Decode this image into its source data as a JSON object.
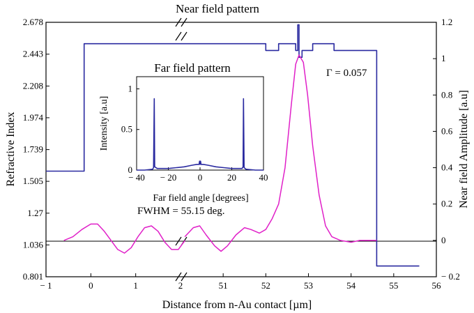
{
  "chart_data": [
    {
      "type": "line",
      "title": "Near field pattern",
      "xlabel": "Distance from n-Au contact [µm]",
      "ylabel": "Refractive Index",
      "y2label": "Near field Amplitude [a.u]",
      "x_broken_axis": true,
      "x_ticks_left": [
        "− 1",
        "0",
        "1",
        "2"
      ],
      "x_ticks_right": [
        "51",
        "52",
        "53",
        "54",
        "55",
        "56"
      ],
      "y_ticks": [
        "0.801",
        "1.036",
        "1.27",
        "1.505",
        "1.739",
        "1.974",
        "2.208",
        "2.443",
        "2.678"
      ],
      "y2_ticks": [
        "− 0.2",
        "0",
        "0.2",
        "0.4",
        "0.6",
        "0.8",
        "1",
        "1.2"
      ],
      "ylim": [
        0.801,
        2.678
      ],
      "y2lim": [
        -0.2,
        1.2
      ],
      "grid": false,
      "series": [
        {
          "color": "#2a2aa0",
          "axis": "left",
          "points_left_segment": [
            [
              -1,
              1.58
            ],
            [
              -0.15,
              1.58
            ],
            [
              -0.15,
              2.52
            ],
            [
              2,
              2.52
            ]
          ],
          "points_right_segment": [
            [
              50,
              2.52
            ],
            [
              52.0,
              2.52
            ],
            [
              52.0,
              2.47
            ],
            [
              52.3,
              2.47
            ],
            [
              52.3,
              2.52
            ],
            [
              52.7,
              2.52
            ],
            [
              52.7,
              2.47
            ],
            [
              52.75,
              2.47
            ],
            [
              52.75,
              2.66
            ],
            [
              52.78,
              2.66
            ],
            [
              52.78,
              2.42
            ],
            [
              52.85,
              2.42
            ],
            [
              52.85,
              2.47
            ],
            [
              53.1,
              2.47
            ],
            [
              53.1,
              2.52
            ],
            [
              53.6,
              2.52
            ],
            [
              53.6,
              2.47
            ],
            [
              54.6,
              2.47
            ],
            [
              54.6,
              0.88
            ],
            [
              55.6,
              0.88
            ]
          ]
        },
        {
          "color": "#e020c8",
          "axis": "right",
          "points_left_segment": [
            [
              -0.6,
              0.0
            ],
            [
              -0.4,
              0.02
            ],
            [
              -0.2,
              0.06
            ],
            [
              0.0,
              0.09
            ],
            [
              0.15,
              0.09
            ],
            [
              0.3,
              0.05
            ],
            [
              0.45,
              0.0
            ],
            [
              0.6,
              -0.05
            ],
            [
              0.75,
              -0.07
            ],
            [
              0.9,
              -0.04
            ],
            [
              1.05,
              0.02
            ],
            [
              1.2,
              0.07
            ],
            [
              1.35,
              0.08
            ],
            [
              1.5,
              0.05
            ],
            [
              1.65,
              -0.01
            ],
            [
              1.8,
              -0.05
            ],
            [
              1.95,
              -0.05
            ],
            [
              2.1,
              0.0
            ]
          ],
          "points_right_segment": [
            [
              50.1,
              0.02
            ],
            [
              50.3,
              0.07
            ],
            [
              50.45,
              0.08
            ],
            [
              50.6,
              0.03
            ],
            [
              50.8,
              -0.03
            ],
            [
              50.95,
              -0.06
            ],
            [
              51.1,
              -0.03
            ],
            [
              51.3,
              0.03
            ],
            [
              51.5,
              0.07
            ],
            [
              51.65,
              0.06
            ],
            [
              51.85,
              0.04
            ],
            [
              52.0,
              0.06
            ],
            [
              52.15,
              0.12
            ],
            [
              52.3,
              0.2
            ],
            [
              52.45,
              0.4
            ],
            [
              52.6,
              0.75
            ],
            [
              52.7,
              0.97
            ],
            [
              52.78,
              1.02
            ],
            [
              52.88,
              0.98
            ],
            [
              52.98,
              0.8
            ],
            [
              53.1,
              0.52
            ],
            [
              53.25,
              0.25
            ],
            [
              53.4,
              0.08
            ],
            [
              53.55,
              0.02
            ],
            [
              53.75,
              0.0
            ],
            [
              54.0,
              -0.01
            ],
            [
              54.2,
              0.0
            ],
            [
              54.4,
              0.0
            ],
            [
              54.6,
              0.0
            ]
          ]
        }
      ],
      "annotations": {
        "gamma": "Γ = 0.057",
        "fwhm": "FWHM = 55.15 deg."
      }
    },
    {
      "type": "line",
      "title": "Far field pattern",
      "xlabel": "Far field angle [degrees]",
      "ylabel": "Intensity [a.u]",
      "xlim": [
        -40,
        40
      ],
      "ylim": [
        0,
        1.15
      ],
      "x_ticks": [
        "− 40",
        "− 20",
        "0",
        "20",
        "40"
      ],
      "x_tick_values": [
        -40,
        -20,
        0,
        20,
        40
      ],
      "y_ticks": [
        "0",
        "0.5",
        "1"
      ],
      "y_tick_values": [
        0,
        0.5,
        1
      ],
      "series": [
        {
          "color": "#2a2aa0",
          "points": [
            [
              -40,
              0.0
            ],
            [
              -35,
              0.0
            ],
            [
              -30,
              0.01
            ],
            [
              -29.3,
              0.03
            ],
            [
              -28.9,
              0.88
            ],
            [
              -28.6,
              0.04
            ],
            [
              -27,
              0.02
            ],
            [
              -20,
              0.02
            ],
            [
              -15,
              0.03
            ],
            [
              -10,
              0.04
            ],
            [
              -5,
              0.06
            ],
            [
              -2,
              0.07
            ],
            [
              -0.6,
              0.07
            ],
            [
              -0.3,
              0.11
            ],
            [
              0,
              0.07
            ],
            [
              0.3,
              0.11
            ],
            [
              0.6,
              0.07
            ],
            [
              2,
              0.07
            ],
            [
              5,
              0.06
            ],
            [
              10,
              0.04
            ],
            [
              15,
              0.03
            ],
            [
              20,
              0.02
            ],
            [
              26.5,
              0.02
            ],
            [
              27.1,
              0.04
            ],
            [
              27.4,
              0.88
            ],
            [
              27.8,
              0.03
            ],
            [
              29,
              0.01
            ],
            [
              35,
              0.0
            ],
            [
              40,
              0.0
            ]
          ]
        }
      ]
    }
  ]
}
